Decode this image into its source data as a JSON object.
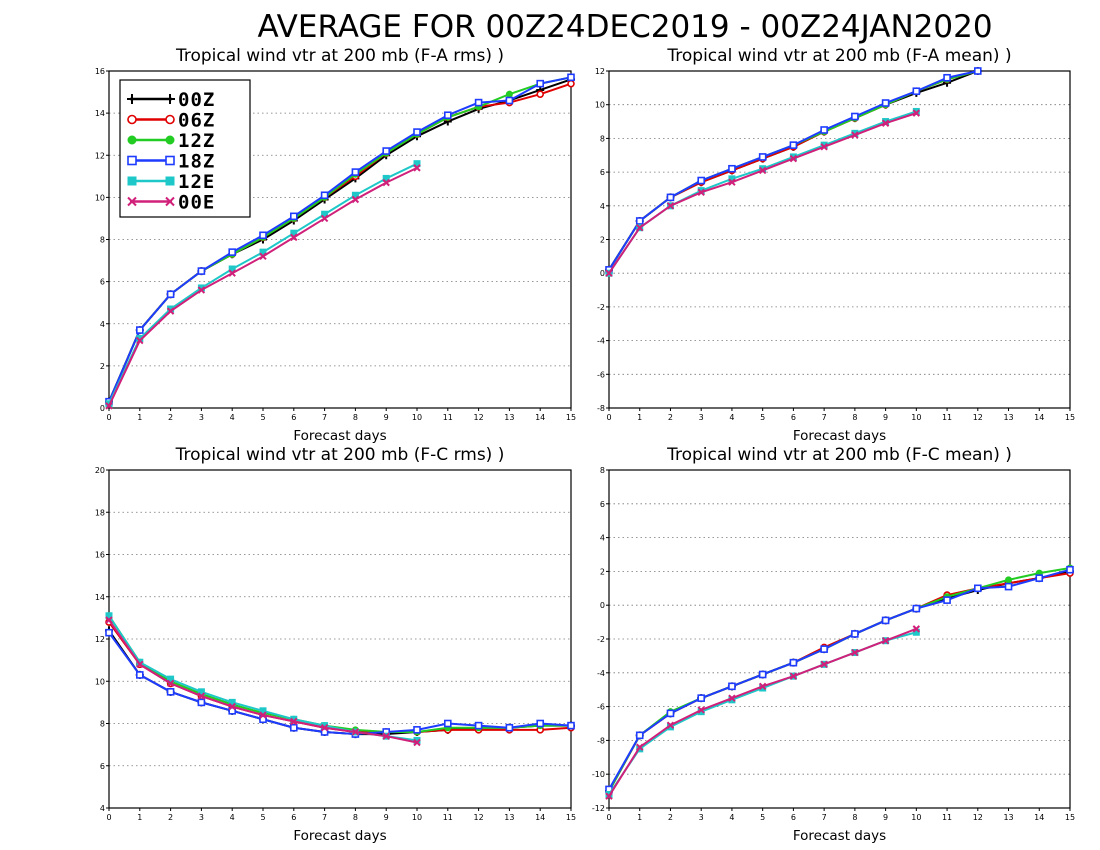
{
  "title": "AVERAGE FOR 00Z24DEC2019 - 00Z24JAN2020",
  "colors": {
    "00Z": "#000000",
    "06Z": "#e00000",
    "12Z": "#22cc22",
    "18Z": "#1e3cff",
    "12E": "#1ec8c8",
    "00E": "#d0207a"
  },
  "legend": [
    {
      "name": "00Z",
      "marker": "plus"
    },
    {
      "name": "06Z",
      "marker": "circle"
    },
    {
      "name": "12Z",
      "marker": "filled-circle"
    },
    {
      "name": "18Z",
      "marker": "square"
    },
    {
      "name": "12E",
      "marker": "filled-square"
    },
    {
      "name": "00E",
      "marker": "x"
    }
  ],
  "chart_data": [
    {
      "type": "line",
      "title": "Tropical wind vtr at 200 mb (F-A rms) )",
      "xlabel": "Forecast days",
      "ylabel": "",
      "xlim": [
        0,
        15
      ],
      "ylim": [
        0,
        16
      ],
      "yticks": [
        0,
        2,
        4,
        6,
        8,
        10,
        12,
        14,
        16
      ],
      "xticks": [
        0,
        1,
        2,
        3,
        4,
        5,
        6,
        7,
        8,
        9,
        10,
        11,
        12,
        13,
        14,
        15
      ],
      "grid": "horizontal dotted",
      "legend_position": "top-left",
      "series": [
        {
          "name": "00Z",
          "x": [
            0,
            1,
            2,
            3,
            4,
            5,
            6,
            7,
            8,
            9,
            10,
            11,
            12,
            13,
            14,
            15
          ],
          "values": [
            0.3,
            3.7,
            5.4,
            6.5,
            7.3,
            8.0,
            8.9,
            9.9,
            10.9,
            12.0,
            12.9,
            13.6,
            14.2,
            14.6,
            15.1,
            15.6
          ]
        },
        {
          "name": "06Z",
          "x": [
            0,
            1,
            2,
            3,
            4,
            5,
            6,
            7,
            8,
            9,
            10,
            11,
            12,
            13,
            14,
            15
          ],
          "values": [
            0.3,
            3.7,
            5.4,
            6.5,
            7.3,
            8.1,
            9.0,
            10.0,
            11.0,
            12.1,
            13.0,
            13.8,
            14.3,
            14.5,
            14.9,
            15.4
          ]
        },
        {
          "name": "12Z",
          "x": [
            0,
            1,
            2,
            3,
            4,
            5,
            6,
            7,
            8,
            9,
            10,
            11,
            12,
            13,
            14,
            15
          ],
          "values": [
            0.3,
            3.7,
            5.4,
            6.5,
            7.3,
            8.1,
            9.0,
            10.0,
            11.1,
            12.1,
            13.0,
            13.8,
            14.3,
            14.9,
            15.4,
            15.7
          ]
        },
        {
          "name": "18Z",
          "x": [
            0,
            1,
            2,
            3,
            4,
            5,
            6,
            7,
            8,
            9,
            10,
            11,
            12,
            13,
            14,
            15
          ],
          "values": [
            0.3,
            3.7,
            5.4,
            6.5,
            7.4,
            8.2,
            9.1,
            10.1,
            11.2,
            12.2,
            13.1,
            13.9,
            14.5,
            14.6,
            15.4,
            15.7
          ]
        },
        {
          "name": "12E",
          "x": [
            0,
            1,
            2,
            3,
            4,
            5,
            6,
            7,
            8,
            9,
            10
          ],
          "values": [
            0.2,
            3.3,
            4.7,
            5.7,
            6.6,
            7.4,
            8.3,
            9.2,
            10.1,
            10.9,
            11.6
          ]
        },
        {
          "name": "00E",
          "x": [
            0,
            1,
            2,
            3,
            4,
            5,
            6,
            7,
            8,
            9,
            10
          ],
          "values": [
            0.1,
            3.2,
            4.6,
            5.6,
            6.4,
            7.2,
            8.1,
            9.0,
            9.9,
            10.7,
            11.4
          ]
        }
      ]
    },
    {
      "type": "line",
      "title": "Tropical wind vtr at 200 mb (F-A mean) )",
      "xlabel": "Forecast days",
      "ylabel": "",
      "xlim": [
        0,
        15
      ],
      "ylim": [
        -8,
        12
      ],
      "yticks": [
        -8,
        -6,
        -4,
        -2,
        0,
        2,
        4,
        6,
        8,
        10,
        12
      ],
      "xticks": [
        0,
        1,
        2,
        3,
        4,
        5,
        6,
        7,
        8,
        9,
        10,
        11,
        12,
        13,
        14,
        15
      ],
      "grid": "horizontal dotted",
      "series": [
        {
          "name": "00Z",
          "x": [
            0,
            1,
            2,
            3,
            4,
            5,
            6,
            7,
            8,
            9,
            10,
            11,
            12
          ],
          "values": [
            0.2,
            3.1,
            4.5,
            5.4,
            6.1,
            6.8,
            7.5,
            8.4,
            9.2,
            10.0,
            10.7,
            11.3,
            12.0
          ]
        },
        {
          "name": "06Z",
          "x": [
            0,
            1,
            2,
            3,
            4,
            5,
            6,
            7,
            8,
            9,
            10,
            11,
            12
          ],
          "values": [
            0.2,
            3.1,
            4.5,
            5.4,
            6.1,
            6.8,
            7.5,
            8.4,
            9.2,
            10.0,
            10.8,
            11.5,
            12.0
          ]
        },
        {
          "name": "12Z",
          "x": [
            0,
            1,
            2,
            3,
            4,
            5,
            6,
            7,
            8,
            9,
            10,
            11,
            12
          ],
          "values": [
            0.2,
            3.1,
            4.5,
            5.5,
            6.2,
            6.9,
            7.6,
            8.4,
            9.2,
            10.0,
            10.8,
            11.5,
            12.0
          ]
        },
        {
          "name": "18Z",
          "x": [
            0,
            1,
            2,
            3,
            4,
            5,
            6,
            7,
            8,
            9,
            10,
            11,
            12
          ],
          "values": [
            0.2,
            3.1,
            4.5,
            5.5,
            6.2,
            6.9,
            7.6,
            8.5,
            9.3,
            10.1,
            10.8,
            11.6,
            12.1
          ]
        },
        {
          "name": "12E",
          "x": [
            0,
            1,
            2,
            3,
            4,
            5,
            6,
            7,
            8,
            9,
            10
          ],
          "values": [
            0.0,
            2.7,
            4.0,
            4.9,
            5.6,
            6.2,
            6.9,
            7.6,
            8.3,
            9.0,
            9.6
          ]
        },
        {
          "name": "00E",
          "x": [
            0,
            1,
            2,
            3,
            4,
            5,
            6,
            7,
            8,
            9,
            10
          ],
          "values": [
            0.0,
            2.7,
            4.0,
            4.8,
            5.4,
            6.1,
            6.8,
            7.5,
            8.2,
            8.9,
            9.5
          ]
        }
      ]
    },
    {
      "type": "line",
      "title": "Tropical wind vtr at 200 mb (F-C rms) )",
      "xlabel": "Forecast days",
      "ylabel": "",
      "xlim": [
        0,
        15
      ],
      "ylim": [
        4,
        20
      ],
      "yticks": [
        4,
        6,
        8,
        10,
        12,
        14,
        16,
        18,
        20
      ],
      "xticks": [
        0,
        1,
        2,
        3,
        4,
        5,
        6,
        7,
        8,
        9,
        10,
        11,
        12,
        13,
        14,
        15
      ],
      "grid": "horizontal dotted",
      "series": [
        {
          "name": "00Z",
          "x": [
            0,
            1,
            2,
            3,
            4,
            5,
            6,
            7,
            8,
            9,
            10,
            11,
            12,
            13,
            14,
            15
          ],
          "values": [
            12.4,
            10.3,
            9.5,
            9.0,
            8.6,
            8.2,
            7.8,
            7.6,
            7.5,
            7.5,
            7.6,
            7.7,
            7.8,
            7.8,
            7.9,
            7.9
          ]
        },
        {
          "name": "06Z",
          "x": [
            0,
            1,
            2,
            3,
            4,
            5,
            6,
            7,
            8,
            9,
            10,
            11,
            12,
            13,
            14,
            15
          ],
          "values": [
            12.8,
            10.8,
            9.9,
            9.3,
            8.8,
            8.4,
            8.1,
            7.8,
            7.6,
            7.6,
            7.6,
            7.7,
            7.7,
            7.7,
            7.7,
            7.8
          ]
        },
        {
          "name": "12Z",
          "x": [
            0,
            1,
            2,
            3,
            4,
            5,
            6,
            7,
            8,
            9,
            10,
            11,
            12,
            13,
            14,
            15
          ],
          "values": [
            13.1,
            10.9,
            10.0,
            9.4,
            8.9,
            8.5,
            8.2,
            7.9,
            7.7,
            7.6,
            7.6,
            7.8,
            7.8,
            7.8,
            7.9,
            7.9
          ]
        },
        {
          "name": "18Z",
          "x": [
            0,
            1,
            2,
            3,
            4,
            5,
            6,
            7,
            8,
            9,
            10,
            11,
            12,
            13,
            14,
            15
          ],
          "values": [
            12.3,
            10.3,
            9.5,
            9.0,
            8.6,
            8.2,
            7.8,
            7.6,
            7.5,
            7.6,
            7.7,
            8.0,
            7.9,
            7.8,
            8.0,
            7.9
          ]
        },
        {
          "name": "12E",
          "x": [
            0,
            1,
            2,
            3,
            4,
            5,
            6,
            7,
            8,
            9,
            10
          ],
          "values": [
            13.1,
            10.9,
            10.1,
            9.5,
            9.0,
            8.6,
            8.2,
            7.9,
            7.6,
            7.4,
            7.2
          ]
        },
        {
          "name": "00E",
          "x": [
            0,
            1,
            2,
            3,
            4,
            5,
            6,
            7,
            8,
            9,
            10
          ],
          "values": [
            12.9,
            10.8,
            9.9,
            9.3,
            8.8,
            8.4,
            8.1,
            7.8,
            7.6,
            7.4,
            7.1
          ]
        }
      ]
    },
    {
      "type": "line",
      "title": "Tropical wind vtr at 200 mb (F-C mean) )",
      "xlabel": "Forecast days",
      "ylabel": "",
      "xlim": [
        0,
        15
      ],
      "ylim": [
        -12,
        8
      ],
      "yticks": [
        -12,
        -10,
        -8,
        -6,
        -4,
        -2,
        0,
        2,
        4,
        6,
        8
      ],
      "xticks": [
        0,
        1,
        2,
        3,
        4,
        5,
        6,
        7,
        8,
        9,
        10,
        11,
        12,
        13,
        14,
        15
      ],
      "grid": "horizontal dotted",
      "series": [
        {
          "name": "00Z",
          "x": [
            0,
            1,
            2,
            3,
            4,
            5,
            6,
            7,
            8,
            9,
            10,
            11,
            12,
            13,
            14,
            15
          ],
          "values": [
            -11.0,
            -7.7,
            -6.4,
            -5.5,
            -4.8,
            -4.1,
            -3.4,
            -2.6,
            -1.7,
            -0.9,
            -0.2,
            0.4,
            0.9,
            1.3,
            1.6,
            2.0
          ]
        },
        {
          "name": "06Z",
          "x": [
            0,
            1,
            2,
            3,
            4,
            5,
            6,
            7,
            8,
            9,
            10,
            11,
            12,
            13,
            14,
            15
          ],
          "values": [
            -11.0,
            -7.7,
            -6.4,
            -5.5,
            -4.8,
            -4.1,
            -3.4,
            -2.5,
            -1.7,
            -0.9,
            -0.2,
            0.6,
            1.0,
            1.3,
            1.6,
            1.9
          ]
        },
        {
          "name": "12Z",
          "x": [
            0,
            1,
            2,
            3,
            4,
            5,
            6,
            7,
            8,
            9,
            10,
            11,
            12,
            13,
            14,
            15
          ],
          "values": [
            -11.0,
            -7.7,
            -6.3,
            -5.5,
            -4.8,
            -4.1,
            -3.4,
            -2.6,
            -1.7,
            -0.9,
            -0.2,
            0.5,
            1.0,
            1.5,
            1.9,
            2.2
          ]
        },
        {
          "name": "18Z",
          "x": [
            0,
            1,
            2,
            3,
            4,
            5,
            6,
            7,
            8,
            9,
            10,
            11,
            12,
            13,
            14,
            15
          ],
          "values": [
            -10.9,
            -7.7,
            -6.4,
            -5.5,
            -4.8,
            -4.1,
            -3.4,
            -2.6,
            -1.7,
            -0.9,
            -0.2,
            0.3,
            1.0,
            1.1,
            1.6,
            2.1
          ]
        },
        {
          "name": "12E",
          "x": [
            0,
            1,
            2,
            3,
            4,
            5,
            6,
            7,
            8,
            9,
            10
          ],
          "values": [
            -11.2,
            -8.5,
            -7.2,
            -6.3,
            -5.6,
            -4.9,
            -4.2,
            -3.5,
            -2.8,
            -2.1,
            -1.6
          ]
        },
        {
          "name": "00E",
          "x": [
            0,
            1,
            2,
            3,
            4,
            5,
            6,
            7,
            8,
            9,
            10
          ],
          "values": [
            -11.3,
            -8.4,
            -7.1,
            -6.2,
            -5.5,
            -4.8,
            -4.2,
            -3.5,
            -2.8,
            -2.1,
            -1.4
          ]
        }
      ]
    }
  ]
}
